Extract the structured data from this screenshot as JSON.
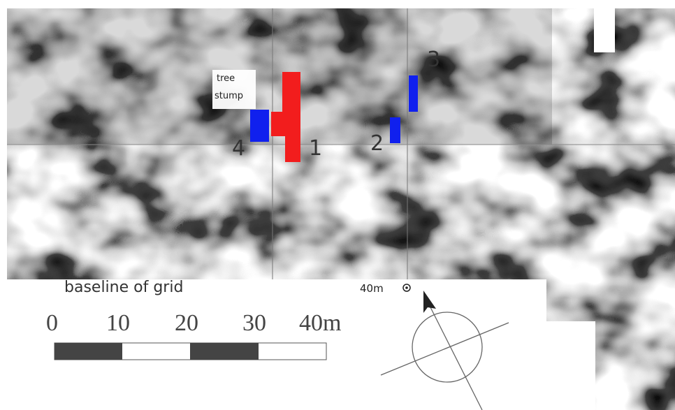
{
  "annotations": {
    "tree_stump": [
      "tree",
      "stump"
    ],
    "areas": [
      "1",
      "2",
      "3",
      "4"
    ]
  },
  "baseline": "baseline of grid",
  "scale_bar": {
    "labels": [
      "0",
      "10",
      "20",
      "30",
      "40m"
    ]
  },
  "grid_marker": "40m"
}
